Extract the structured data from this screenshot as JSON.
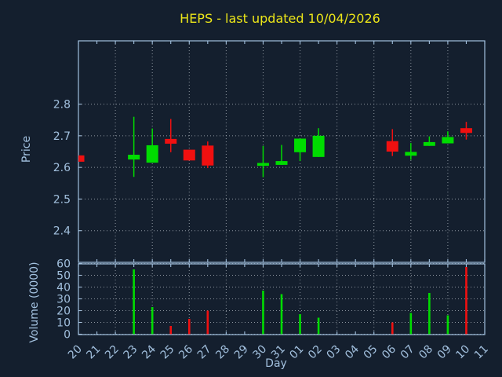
{
  "title": "HEPS - last updated 10/04/2026",
  "xlabel": "Day",
  "chart_data": {
    "type": "candlestick",
    "title": "HEPS - last updated 10/04/2026",
    "xlabel": "Day",
    "x_tick_labels": [
      "20",
      "21",
      "22",
      "23",
      "24",
      "25",
      "26",
      "27",
      "28",
      "29",
      "30",
      "31",
      "01",
      "02",
      "03",
      "04",
      "05",
      "06",
      "07",
      "08",
      "09",
      "10",
      "11"
    ],
    "grid": "dotted, vertical lines on every second day",
    "price_panel": {
      "ylabel": "Price",
      "yticks": [
        "2.8",
        "2.7",
        "2.6",
        "2.5",
        "2.4"
      ],
      "ytick_values": [
        2.8,
        2.7,
        2.6,
        2.5,
        2.4
      ],
      "ylim": [
        2.3,
        3.0
      ]
    },
    "volume_panel": {
      "ylabel": "Volume (0000)",
      "yticks": [
        "60",
        "50",
        "40",
        "30",
        "20",
        "10",
        "0"
      ],
      "ytick_values": [
        60,
        50,
        40,
        30,
        20,
        10,
        0
      ],
      "ylim": [
        0,
        60
      ]
    },
    "candles": [
      {
        "day": "20",
        "index": 0,
        "open": 2.638,
        "high": 2.638,
        "low": 2.618,
        "close": 2.618,
        "direction": "down",
        "volume": null
      },
      {
        "day": "23",
        "index": 3,
        "open": 2.625,
        "high": 2.76,
        "low": 2.57,
        "close": 2.64,
        "direction": "up",
        "volume": 55
      },
      {
        "day": "24",
        "index": 4,
        "open": 2.615,
        "high": 2.723,
        "low": 2.615,
        "close": 2.67,
        "direction": "up",
        "volume": 23
      },
      {
        "day": "25",
        "index": 5,
        "open": 2.69,
        "high": 2.753,
        "low": 2.648,
        "close": 2.675,
        "direction": "down",
        "volume": 7
      },
      {
        "day": "26",
        "index": 6,
        "open": 2.656,
        "high": 2.656,
        "low": 2.622,
        "close": 2.622,
        "direction": "down",
        "volume": 13
      },
      {
        "day": "27",
        "index": 7,
        "open": 2.669,
        "high": 2.682,
        "low": 2.598,
        "close": 2.606,
        "direction": "down",
        "volume": 20
      },
      {
        "day": "30",
        "index": 10,
        "open": 2.605,
        "high": 2.668,
        "low": 2.569,
        "close": 2.614,
        "direction": "up",
        "volume": 37
      },
      {
        "day": "31",
        "index": 11,
        "open": 2.608,
        "high": 2.671,
        "low": 2.608,
        "close": 2.62,
        "direction": "up",
        "volume": 34
      },
      {
        "day": "01",
        "index": 12,
        "open": 2.648,
        "high": 2.691,
        "low": 2.62,
        "close": 2.691,
        "direction": "up",
        "volume": 17
      },
      {
        "day": "02",
        "index": 13,
        "open": 2.633,
        "high": 2.724,
        "low": 2.633,
        "close": 2.7,
        "direction": "up",
        "volume": 14
      },
      {
        "day": "06",
        "index": 17,
        "open": 2.683,
        "high": 2.721,
        "low": 2.636,
        "close": 2.65,
        "direction": "down",
        "volume": 10
      },
      {
        "day": "07",
        "index": 18,
        "open": 2.637,
        "high": 2.677,
        "low": 2.624,
        "close": 2.649,
        "direction": "up",
        "volume": 18
      },
      {
        "day": "08",
        "index": 19,
        "open": 2.668,
        "high": 2.698,
        "low": 2.668,
        "close": 2.68,
        "direction": "up",
        "volume": 35
      },
      {
        "day": "09",
        "index": 20,
        "open": 2.676,
        "high": 2.714,
        "low": 2.676,
        "close": 2.696,
        "direction": "up",
        "volume": 16
      },
      {
        "day": "10",
        "index": 21,
        "open": 2.724,
        "high": 2.744,
        "low": 2.688,
        "close": 2.709,
        "direction": "down",
        "volume": 57
      }
    ],
    "colors": {
      "up": "#00dc00",
      "down": "#f01010",
      "background": "#141f2e",
      "axis": "#a2c0de",
      "grid": "#aab2ba",
      "title": "#ece619"
    }
  }
}
